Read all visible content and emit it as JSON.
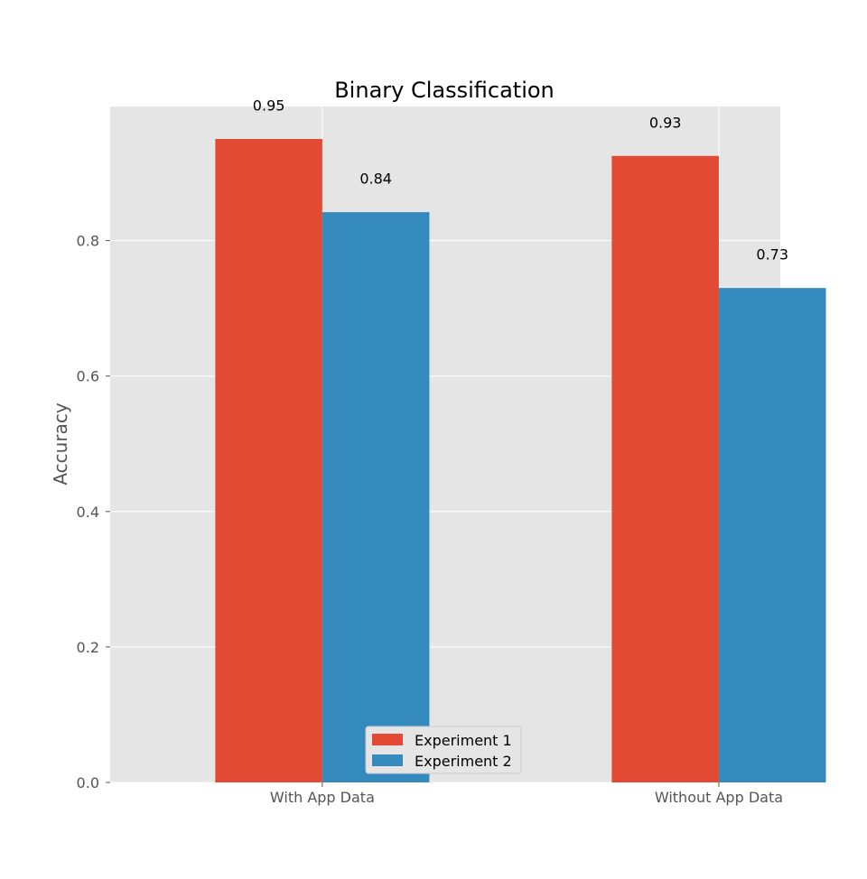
{
  "chart_data": {
    "type": "bar",
    "title": "Binary Classification",
    "xlabel": "",
    "ylabel": "Accuracy",
    "categories": [
      "With App Data",
      "Without App Data"
    ],
    "series": [
      {
        "name": "Experiment 1",
        "color": "#E24A33",
        "values": [
          0.95,
          0.925
        ],
        "labels": [
          "0.95",
          "0.93"
        ]
      },
      {
        "name": "Experiment 2",
        "color": "#348ABD",
        "values": [
          0.842,
          0.73
        ],
        "labels": [
          "0.84",
          "0.73"
        ]
      }
    ],
    "ylim": [
      0,
      0.998
    ],
    "yticks": [
      0.0,
      0.2,
      0.4,
      0.6,
      0.8
    ],
    "ytick_labels": [
      "0.0",
      "0.2",
      "0.4",
      "0.6",
      "0.8"
    ],
    "grid": true,
    "legend_position": "bottom-center"
  }
}
